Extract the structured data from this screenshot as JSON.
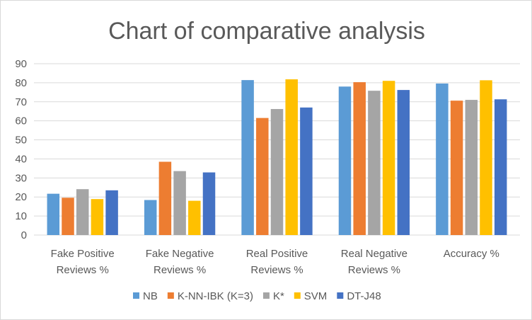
{
  "chart_data": {
    "type": "bar",
    "title": "Chart of comparative analysis",
    "xlabel": "",
    "ylabel": "",
    "ylim": [
      0,
      90
    ],
    "yticks": [
      0,
      10,
      20,
      30,
      40,
      50,
      60,
      70,
      80,
      90
    ],
    "grid": true,
    "legend_position": "bottom",
    "categories": [
      [
        "Fake Positive",
        "Reviews %"
      ],
      [
        "Fake Negative",
        "Reviews %"
      ],
      [
        "Real Positive",
        "Reviews %"
      ],
      [
        "Real Negative",
        "Reviews %"
      ],
      [
        "Accuracy %"
      ]
    ],
    "series": [
      {
        "name": "NB",
        "color": "#5b9bd5",
        "values": [
          21.7,
          18.4,
          81.4,
          78.0,
          79.6
        ]
      },
      {
        "name": "K-NN-IBK (K=3)",
        "color": "#ed7d31",
        "values": [
          19.6,
          38.5,
          61.5,
          80.3,
          70.6
        ]
      },
      {
        "name": "K*",
        "color": "#a5a5a5",
        "values": [
          24.1,
          33.6,
          66.2,
          75.8,
          71.0
        ]
      },
      {
        "name": "SVM",
        "color": "#ffc000",
        "values": [
          18.9,
          18.0,
          81.8,
          81.0,
          81.3
        ]
      },
      {
        "name": "DT-J48",
        "color": "#4472c4",
        "values": [
          23.5,
          32.9,
          67.0,
          76.2,
          71.3
        ]
      }
    ],
    "gridline_color": "#d9d9d9",
    "text_color": "#595959"
  }
}
